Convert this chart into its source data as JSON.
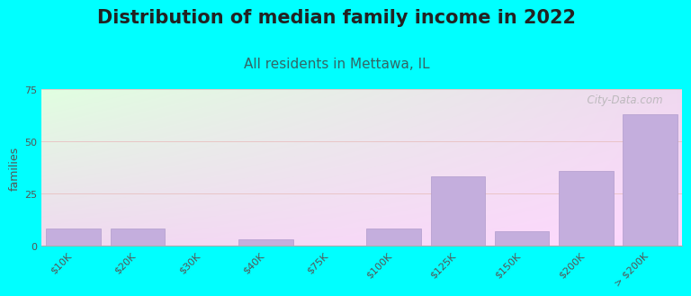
{
  "title": "Distribution of median family income in 2022",
  "subtitle": "All residents in Mettawa, IL",
  "ylabel": "families",
  "categories": [
    "$10K",
    "$20K",
    "$30K",
    "$40K",
    "$75K",
    "$100K",
    "$125K",
    "$150K",
    "$200K",
    "> $200K"
  ],
  "values": [
    8,
    8,
    0,
    3,
    0,
    8,
    33,
    7,
    36,
    63
  ],
  "bar_color": "#c4aedd",
  "bar_edgecolor": "#b09ccc",
  "ylim": [
    0,
    75
  ],
  "yticks": [
    0,
    25,
    50,
    75
  ],
  "background_color": "#00ffff",
  "title_fontsize": 15,
  "subtitle_fontsize": 11,
  "subtitle_color": "#336666",
  "ylabel_fontsize": 9,
  "tick_color": "#555555",
  "watermark": "  City-Data.com"
}
